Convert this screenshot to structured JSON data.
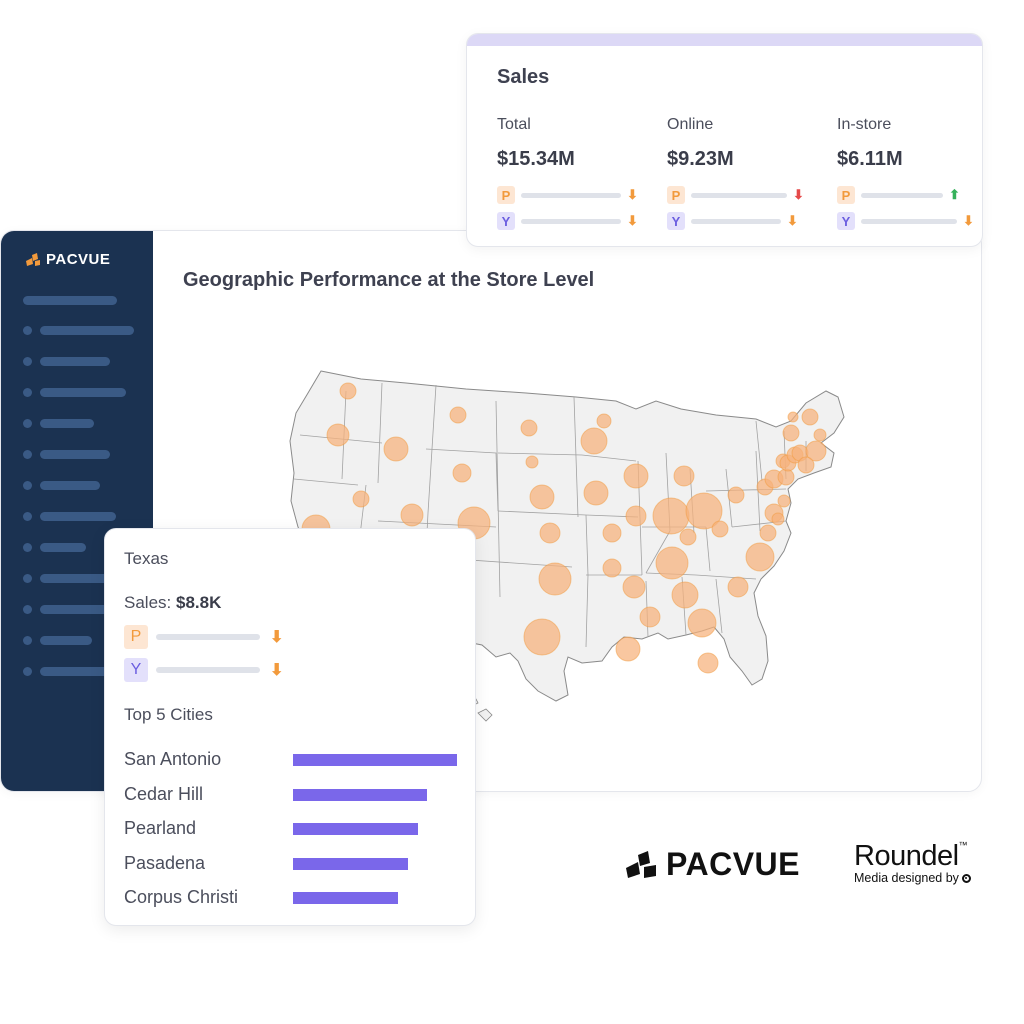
{
  "app": {
    "brand": "PACVUE",
    "title": "Geographic Performance at the Store Level",
    "nav_count": 13
  },
  "sales": {
    "title": "Sales",
    "metrics": [
      {
        "label": "Total",
        "value": "$15.34M",
        "p_trend": "down",
        "y_trend": "down"
      },
      {
        "label": "Online",
        "value": "$9.23M",
        "p_trend": "down-red",
        "y_trend": "down"
      },
      {
        "label": "In-store",
        "value": "$6.11M",
        "p_trend": "up",
        "y_trend": "down"
      }
    ],
    "p_badge": "P",
    "y_badge": "Y"
  },
  "texas": {
    "title": "Texas",
    "sales_label": "Sales: ",
    "sales_value": "$8.8K",
    "p_badge": "P",
    "y_badge": "Y",
    "cities_title": "Top 5 Cities",
    "cities": [
      {
        "name": "San Antonio",
        "share": 1.0
      },
      {
        "name": "Cedar Hill",
        "share": 0.82
      },
      {
        "name": "Pearland",
        "share": 0.76
      },
      {
        "name": "Pasadena",
        "share": 0.7
      },
      {
        "name": "Corpus Christi",
        "share": 0.64
      }
    ]
  },
  "footer": {
    "pacvue": "PACVUE",
    "roundel": "Roundel",
    "roundel_tm": "™",
    "roundel_sub": "Media designed by"
  },
  "colors": {
    "sidebar": "#1b3251",
    "accent_orange": "#f29a3c",
    "bubble": "#f7b27c",
    "city_bar": "#7a67ea",
    "sales_strip": "#dcd8f6"
  },
  "icons": {
    "logo": "pacvue-logo-icon",
    "trend_down": "arrow-down-icon",
    "trend_up": "arrow-up-icon"
  }
}
